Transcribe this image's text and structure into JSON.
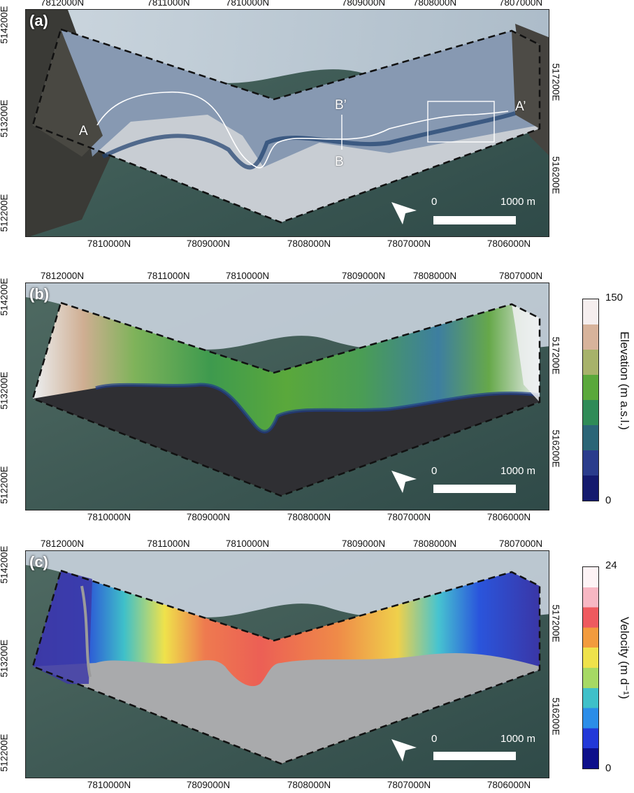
{
  "panels": [
    {
      "label": "(a)",
      "top_ticks": [
        "7812000N",
        "7811000N",
        "7810000N",
        "7809000N",
        "7808000N",
        "7807000N"
      ],
      "bottom_ticks": [
        "7810000N",
        "7809000N",
        "7808000N",
        "7807000N",
        "7806000N"
      ],
      "left_ticks": [
        "514200E",
        "513200E",
        "512200E"
      ],
      "right_ticks": [
        "517200E",
        "516200E"
      ],
      "annotations": {
        "a": "A",
        "a_prime": "A’",
        "b": "B",
        "b_prime": "B’"
      },
      "scale": {
        "zero": "0",
        "end": "1000 m"
      }
    },
    {
      "label": "(b)",
      "top_ticks": [
        "7812000N",
        "7811000N",
        "7810000N",
        "7809000N",
        "7808000N",
        "7807000N"
      ],
      "bottom_ticks": [
        "7810000N",
        "7809000N",
        "7808000N",
        "7807000N",
        "7806000N"
      ],
      "left_ticks": [
        "514200E",
        "513200E",
        "512200E"
      ],
      "right_ticks": [
        "517200E",
        "516200E"
      ],
      "scale": {
        "zero": "0",
        "end": "1000 m"
      },
      "colorbar": {
        "title": "Elevation (m a.s.l.)",
        "max": "150",
        "min": "0",
        "colors": [
          "#f5eeee",
          "#d7b39b",
          "#a7b26a",
          "#5aa83b",
          "#2f8b57",
          "#2b6577",
          "#2a3c8c",
          "#141a6e"
        ]
      }
    },
    {
      "label": "(c)",
      "top_ticks": [
        "7812000N",
        "7811000N",
        "7810000N",
        "7809000N",
        "7808000N",
        "7807000N"
      ],
      "bottom_ticks": [
        "7810000N",
        "7809000N",
        "7808000N",
        "7807000N",
        "7806000N"
      ],
      "left_ticks": [
        "514200E",
        "513200E",
        "512200E"
      ],
      "right_ticks": [
        "517200E",
        "516200E"
      ],
      "scale": {
        "zero": "0",
        "end": "1000 m"
      },
      "colorbar": {
        "title": "Velocity (m d⁻¹)",
        "max": "24",
        "min": "0",
        "colors": [
          "#fdf3f5",
          "#f7b7c3",
          "#ee5a5f",
          "#f29b3d",
          "#efe24b",
          "#a6d964",
          "#3fc0c9",
          "#2b8de8",
          "#2238d8",
          "#0d0f8a"
        ]
      }
    }
  ]
}
